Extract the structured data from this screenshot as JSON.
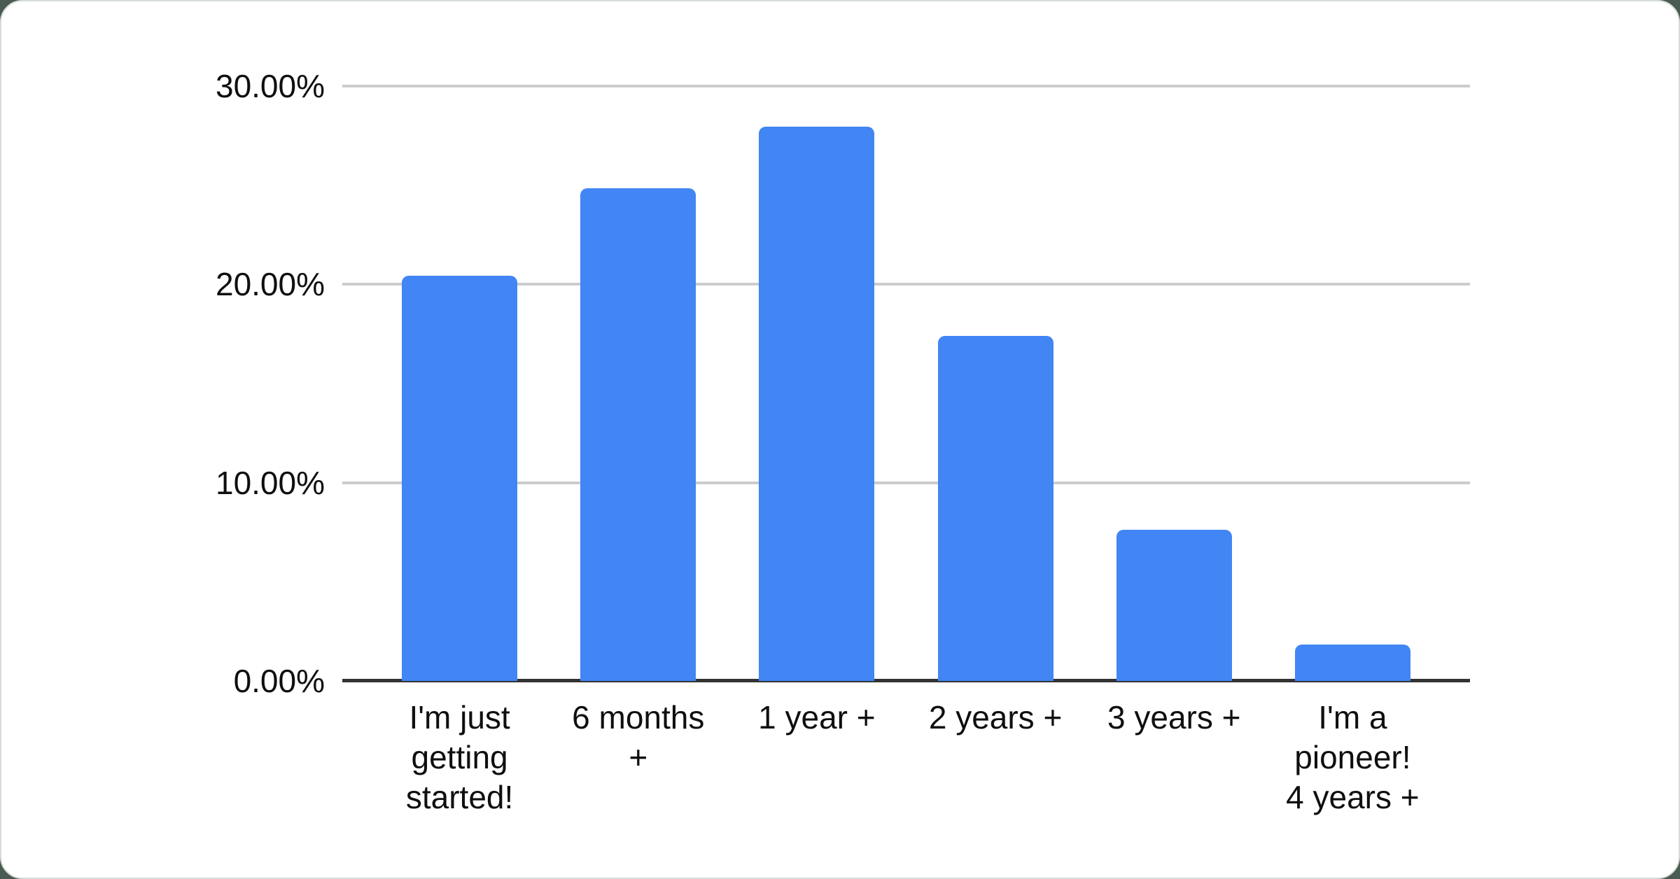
{
  "page": {
    "background_color": "#4a5c51",
    "card_color": "#ffffff",
    "card_border_color": "#d6dcd7"
  },
  "chart_data": {
    "type": "bar",
    "title": "",
    "xlabel": "",
    "ylabel": "",
    "legend_position": "none",
    "grid": true,
    "categories": [
      "I'm just getting started!",
      "6 months +",
      "1 year +",
      "2 years +",
      "3 years +",
      "I'm a pioneer! 4 years +"
    ],
    "category_lines": [
      [
        "I'm just",
        "getting",
        "started!"
      ],
      [
        "6 months",
        "+"
      ],
      [
        "1 year +"
      ],
      [
        "2 years +"
      ],
      [
        "3 years +"
      ],
      [
        "I'm a",
        "pioneer!",
        "4 years +"
      ]
    ],
    "values": [
      20.45,
      24.86,
      27.95,
      17.41,
      7.64,
      1.82
    ],
    "value_unit": "%",
    "ylim": [
      0,
      30
    ],
    "yticks": [
      {
        "value": 0,
        "label": "0.00%"
      },
      {
        "value": 10,
        "label": "10.00%"
      },
      {
        "value": 20,
        "label": "20.00%"
      },
      {
        "value": 30,
        "label": "30.00%"
      }
    ],
    "bar_color": "#4285f4",
    "gridline_color": "#cccccc",
    "axis_line_color": "#333333",
    "label_color": "#0f0f0f"
  }
}
